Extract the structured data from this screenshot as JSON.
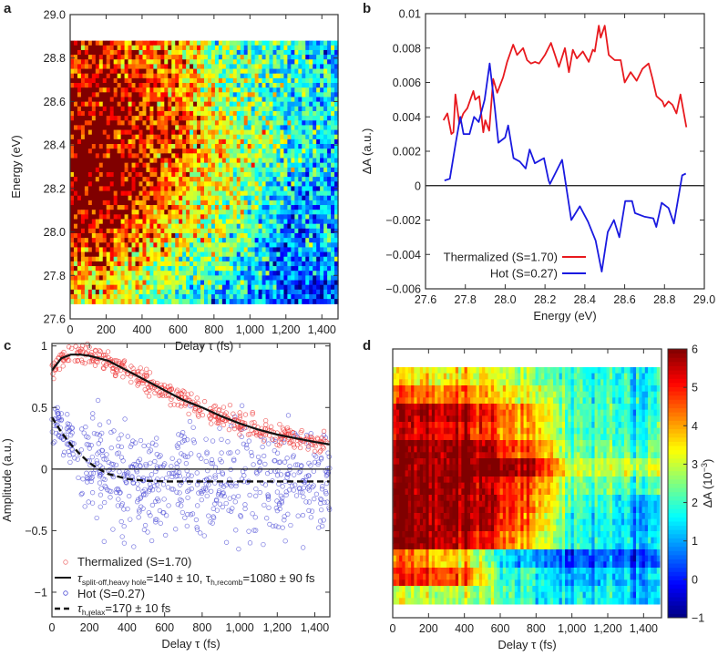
{
  "chart_data": [
    {
      "panel": "a",
      "type": "heatmap",
      "xlabel": "Delay τ (fs)",
      "ylabel": "Energy (eV)",
      "xlim": [
        0,
        1490
      ],
      "ylim": [
        27.6,
        29.0
      ],
      "xticks": [
        0,
        200,
        400,
        600,
        800,
        1000,
        1200,
        1400
      ],
      "xtick_labels": [
        "0",
        "200",
        "400",
        "600",
        "800",
        "1,000",
        "1,200",
        "1,400"
      ],
      "yticks": [
        27.6,
        27.8,
        28.0,
        28.2,
        28.4,
        28.6,
        28.8,
        29.0
      ],
      "ytick_labels": [
        "27.6",
        "27.8",
        "28.0",
        "28.2",
        "28.4",
        "28.6",
        "28.8",
        "29.0"
      ],
      "data_extent": {
        "delay": [
          0,
          1490
        ],
        "energy": [
          27.67,
          28.88
        ]
      },
      "coarse_energy": [
        28.8,
        28.6,
        28.4,
        28.2,
        28.0,
        27.8,
        27.7
      ],
      "coarse_delay": [
        0,
        200,
        400,
        600,
        800,
        1000,
        1200,
        1400
      ],
      "coarse_level": [
        [
          0.8,
          0.85,
          0.8,
          0.7,
          0.55,
          0.45,
          0.4,
          0.35
        ],
        [
          0.95,
          0.95,
          0.85,
          0.75,
          0.6,
          0.5,
          0.4,
          0.4
        ],
        [
          1.0,
          1.0,
          0.9,
          0.8,
          0.65,
          0.55,
          0.45,
          0.35
        ],
        [
          1.0,
          1.0,
          0.85,
          0.75,
          0.6,
          0.5,
          0.35,
          0.3
        ],
        [
          0.95,
          0.9,
          0.75,
          0.65,
          0.55,
          0.45,
          0.25,
          0.3
        ],
        [
          0.75,
          0.7,
          0.6,
          0.5,
          0.45,
          0.35,
          0.2,
          0.25
        ],
        [
          0.7,
          0.65,
          0.55,
          0.45,
          0.35,
          0.3,
          0.2,
          0.2
        ]
      ]
    },
    {
      "panel": "b",
      "type": "line",
      "xlabel": "Energy (eV)",
      "ylabel": "ΔA (a.u.)",
      "xlim": [
        27.6,
        29.0
      ],
      "ylim": [
        -0.006,
        0.01
      ],
      "xticks": [
        27.6,
        27.8,
        28.0,
        28.2,
        28.4,
        28.6,
        28.8,
        29.0
      ],
      "xtick_labels": [
        "27.6",
        "27.8",
        "28.0",
        "28.2",
        "28.4",
        "28.6",
        "28.8",
        "29.0"
      ],
      "yticks": [
        -0.006,
        -0.004,
        -0.002,
        0,
        0.002,
        0.004,
        0.006,
        0.008,
        0.01
      ],
      "ytick_labels": [
        "−0.006",
        "−0.004",
        "−0.002",
        "0",
        "0.002",
        "0.004",
        "0.006",
        "0.008",
        "0.01"
      ],
      "legend_position": "bottom-left",
      "series": [
        {
          "name": "Thermalized (S=1.70)",
          "color": "#e8191e",
          "x": [
            27.69,
            27.71,
            27.73,
            27.74,
            27.75,
            27.77,
            27.79,
            27.81,
            27.84,
            27.85,
            27.87,
            27.89,
            27.9,
            27.92,
            27.94,
            27.96,
            27.99,
            28.01,
            28.04,
            28.06,
            28.09,
            28.11,
            28.13,
            28.15,
            28.17,
            28.2,
            28.23,
            28.25,
            28.27,
            28.3,
            28.32,
            28.34,
            28.36,
            28.39,
            28.42,
            28.44,
            28.45,
            28.47,
            28.48,
            28.5,
            28.52,
            28.55,
            28.58,
            28.6,
            28.63,
            28.66,
            28.69,
            28.72,
            28.74,
            28.76,
            28.79,
            28.8,
            28.82,
            28.84,
            28.86,
            28.88,
            28.91
          ],
          "y": [
            0.0038,
            0.0042,
            0.003,
            0.0031,
            0.0053,
            0.0036,
            0.0042,
            0.0045,
            0.0055,
            0.005,
            0.0052,
            0.0031,
            0.0038,
            0.0032,
            0.0062,
            0.0054,
            0.0063,
            0.0072,
            0.0082,
            0.0076,
            0.008,
            0.0073,
            0.0071,
            0.0072,
            0.0071,
            0.0076,
            0.0083,
            0.0076,
            0.0069,
            0.008,
            0.0066,
            0.0079,
            0.0074,
            0.0078,
            0.0072,
            0.0079,
            0.0078,
            0.0093,
            0.0086,
            0.0093,
            0.0076,
            0.0073,
            0.0073,
            0.006,
            0.0066,
            0.0061,
            0.0068,
            0.0071,
            0.0062,
            0.0052,
            0.0049,
            0.0046,
            0.0049,
            0.0047,
            0.0042,
            0.0053,
            0.0034
          ]
        },
        {
          "name": "Hot (S=0.27)",
          "color": "#1a1ae0",
          "x": [
            27.695,
            27.722,
            27.752,
            27.775,
            27.791,
            27.821,
            27.844,
            27.867,
            27.897,
            27.922,
            27.948,
            27.966,
            28.0,
            28.015,
            28.042,
            28.073,
            28.103,
            28.123,
            28.149,
            28.195,
            28.218,
            28.225,
            28.286,
            28.332,
            28.375,
            28.416,
            28.454,
            28.485,
            28.515,
            28.546,
            28.573,
            28.603,
            28.637,
            28.652,
            28.698,
            28.744,
            28.759,
            28.786,
            28.82,
            28.847,
            28.889,
            28.907
          ],
          "y": [
            0.0003,
            0.0004,
            0.0025,
            0.004,
            0.003,
            0.003,
            0.004,
            0.0037,
            0.005,
            0.0071,
            0.0045,
            0.0025,
            0.0028,
            0.0035,
            0.0016,
            0.0014,
            0.001,
            0.0021,
            0.0013,
            0.0016,
            0.0003,
            0.0001,
            0.0015,
            -0.002,
            -0.0012,
            -0.0021,
            -0.0032,
            -0.005,
            -0.0027,
            -0.002,
            -0.003,
            -0.0009,
            -0.0009,
            -0.0016,
            -0.0018,
            -0.0019,
            -0.0024,
            -0.001,
            -0.0013,
            -0.0022,
            0.0006,
            0.0007
          ]
        }
      ]
    },
    {
      "panel": "c",
      "type": "scatter",
      "xlabel": "Delay τ (fs)",
      "ylabel": "Amplitude (a.u.)",
      "xlim": [
        0,
        1480
      ],
      "ylim": [
        -1.2,
        1.02
      ],
      "xticks": [
        0,
        200,
        400,
        600,
        800,
        1000,
        1200,
        1400
      ],
      "xtick_labels": [
        "0",
        "200",
        "400",
        "600",
        "800",
        "1,000",
        "1,200",
        "1,400"
      ],
      "yticks": [
        -1,
        -0.5,
        0,
        0.5,
        1
      ],
      "ytick_labels": [
        "−1",
        "−0.5",
        "0",
        "0.5",
        "1"
      ],
      "legend_position": "bottom-left",
      "legend": [
        {
          "label": "Thermalized (S=1.70)",
          "marker": "circle",
          "color": "#f07a7a"
        },
        {
          "label_tau": "τ",
          "label_sub1": "split-off,heavy hole",
          "label_mid": "=140 ± 10,  τ",
          "label_sub2": "h,recomb",
          "label_end": "=1080 ± 90 fs",
          "style": "solid"
        },
        {
          "label": "Hot (S=0.27)",
          "marker": "circle",
          "color": "#4b4bd6"
        },
        {
          "label_tau": "τ",
          "label_sub1": "h,relax",
          "label_end": "=170 ± 10 fs",
          "style": "dashed"
        }
      ],
      "fit_thermalized": {
        "x": [
          0,
          50,
          100,
          150,
          200,
          300,
          400,
          500,
          600,
          700,
          800,
          900,
          1000,
          1100,
          1200,
          1300,
          1400,
          1480
        ],
        "y": [
          0.8,
          0.9,
          0.93,
          0.93,
          0.92,
          0.88,
          0.8,
          0.72,
          0.64,
          0.56,
          0.5,
          0.43,
          0.37,
          0.32,
          0.28,
          0.25,
          0.22,
          0.2
        ]
      },
      "fit_hot": {
        "x": [
          0,
          50,
          100,
          150,
          200,
          250,
          300,
          400,
          500,
          600,
          800,
          1000,
          1200,
          1480
        ],
        "y": [
          0.42,
          0.3,
          0.2,
          0.12,
          0.05,
          0.0,
          -0.04,
          -0.08,
          -0.095,
          -0.1,
          -0.1,
          -0.1,
          -0.1,
          -0.1
        ]
      },
      "scatter_spread": {
        "thermalized": 0.06,
        "hot": 0.3
      }
    },
    {
      "panel": "d",
      "type": "heatmap",
      "xlabel": "Delay τ (fs)",
      "xlim": [
        0,
        1500
      ],
      "xticks": [
        0,
        200,
        400,
        600,
        800,
        1000,
        1200,
        1400
      ],
      "xtick_labels": [
        "0",
        "200",
        "400",
        "600",
        "800",
        "1,000",
        "1,200",
        "1,400"
      ],
      "colorbar": {
        "label": "ΔA (10",
        "label_exp": "−3",
        "label_end": ")",
        "range": [
          -1,
          6
        ],
        "ticks": [
          -1,
          0,
          1,
          2,
          3,
          4,
          5,
          6
        ],
        "tick_labels": [
          "−1",
          "0",
          "1",
          "2",
          "3",
          "4",
          "5",
          "6"
        ]
      },
      "coarse_delay": [
        0,
        200,
        400,
        600,
        800,
        1000,
        1200,
        1400
      ],
      "coarse_level": [
        [
          3.5,
          3.5,
          3.5,
          3.0,
          2.5,
          2.0,
          1.8,
          1.5
        ],
        [
          4.5,
          4.5,
          4.3,
          3.5,
          3.2,
          2.2,
          1.8,
          1.5
        ],
        [
          5.5,
          5.8,
          5.5,
          4.5,
          4.0,
          2.2,
          2.0,
          1.6
        ],
        [
          5.2,
          5.5,
          5.2,
          4.2,
          3.8,
          2.2,
          2.0,
          1.8
        ],
        [
          6,
          6,
          6,
          5,
          4.5,
          2.5,
          2.2,
          2.0
        ],
        [
          6,
          6,
          6,
          6,
          5.5,
          3.0,
          2.8,
          2.8
        ],
        [
          6,
          6,
          6,
          5,
          4.5,
          2.5,
          2.2,
          2.0
        ],
        [
          6,
          6,
          5.8,
          5.2,
          4.3,
          2.2,
          1.8,
          1.0
        ],
        [
          6,
          6,
          6,
          5,
          4.0,
          2.0,
          1.5,
          1.0
        ],
        [
          6,
          6,
          5.5,
          4.5,
          3.5,
          2.0,
          1.5,
          1.2
        ],
        [
          4.5,
          4.0,
          3.5,
          1.5,
          1.0,
          0.3,
          0.5,
          0.2
        ],
        [
          5,
          5,
          4.5,
          2,
          2,
          1,
          1.2,
          1
        ],
        [
          3.0,
          3.0,
          2.8,
          2.2,
          1.8,
          1.6,
          1.5,
          1.2
        ]
      ]
    }
  ],
  "panel_labels": [
    "a",
    "b",
    "c",
    "d"
  ]
}
